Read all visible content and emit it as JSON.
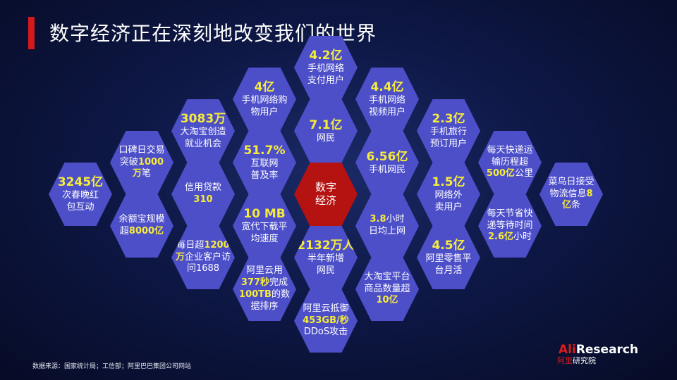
{
  "title": "数字经济正在深刻地改变我们的世界",
  "source": "数据来源：国家统计局；工信部；阿里巴巴集团公司网站",
  "logo": {
    "brand_red": "Ali",
    "brand_white": "Research",
    "sub_red": "阿里",
    "sub_white": "研究院"
  },
  "colors": {
    "hex": "#4d4fc9",
    "center": "#b51212",
    "highlight": "#f6ec3a",
    "title_bar": "#d31a1a"
  },
  "hexes": [
    {
      "id": "c0-a",
      "lines": [
        [
          {
            "t": "3245亿",
            "y": 1
          }
        ],
        [
          {
            "t": "次春晚红"
          }
        ],
        [
          {
            "t": "包互动"
          }
        ]
      ]
    },
    {
      "id": "c1-a",
      "lines": [
        [
          {
            "t": "口碑日交易"
          }
        ],
        [
          {
            "t": "突破"
          },
          {
            "t": "1000",
            "y": 1
          }
        ],
        [
          {
            "t": "万",
            "y": 1
          },
          {
            "t": "笔"
          }
        ]
      ]
    },
    {
      "id": "c1-b",
      "lines": [
        [
          {
            "t": "余额宝规模"
          }
        ],
        [
          {
            "t": "超"
          },
          {
            "t": "8000亿",
            "y": 1
          }
        ]
      ]
    },
    {
      "id": "c2-a",
      "lines": [
        [
          {
            "t": "3083万",
            "y": 1
          }
        ],
        [
          {
            "t": "大淘宝创造"
          }
        ],
        [
          {
            "t": "就业机会"
          }
        ]
      ]
    },
    {
      "id": "c2-b",
      "lines": [
        [
          {
            "t": "信用贷款"
          }
        ],
        [
          {
            "t": "310",
            "y": 1
          }
        ]
      ]
    },
    {
      "id": "c2-c",
      "lines": [
        [
          {
            "t": "每日超"
          },
          {
            "t": "1200",
            "y": 1
          }
        ],
        [
          {
            "t": "万",
            "y": 1
          },
          {
            "t": "企业客户访"
          }
        ],
        [
          {
            "t": "问1688"
          }
        ]
      ]
    },
    {
      "id": "c3-a",
      "lines": [
        [
          {
            "t": "4亿",
            "y": 1
          }
        ],
        [
          {
            "t": "手机网络购"
          }
        ],
        [
          {
            "t": "物用户"
          }
        ]
      ]
    },
    {
      "id": "c3-b",
      "lines": [
        [
          {
            "t": "51.7%",
            "y": 1
          }
        ],
        [
          {
            "t": "互联网"
          }
        ],
        [
          {
            "t": "普及率"
          }
        ]
      ]
    },
    {
      "id": "c3-c",
      "lines": [
        [
          {
            "t": "10 MB",
            "y": 1
          }
        ],
        [
          {
            "t": "宽代下载平"
          }
        ],
        [
          {
            "t": "均速度"
          }
        ]
      ]
    },
    {
      "id": "c3-d",
      "lines": [
        [
          {
            "t": "阿里云用"
          }
        ],
        [
          {
            "t": "377秒",
            "y": 1
          },
          {
            "t": "完成"
          }
        ],
        [
          {
            "t": "100TB",
            "y": 1
          },
          {
            "t": "的数"
          }
        ],
        [
          {
            "t": "据排序"
          }
        ]
      ]
    },
    {
      "id": "c4-a",
      "lines": [
        [
          {
            "t": "4.2亿",
            "y": 1
          }
        ],
        [
          {
            "t": "手机网络"
          }
        ],
        [
          {
            "t": "支付用户"
          }
        ]
      ]
    },
    {
      "id": "c4-b",
      "lines": [
        [
          {
            "t": "7.1亿",
            "y": 1
          }
        ],
        [
          {
            "t": "网民"
          }
        ]
      ]
    },
    {
      "id": "c4-center",
      "red": 1,
      "lines": [
        [
          {
            "t": "数字"
          }
        ],
        [
          {
            "t": "经济"
          }
        ]
      ]
    },
    {
      "id": "c4-d",
      "lines": [
        [
          {
            "t": "2132万人",
            "y": 1
          }
        ],
        [
          {
            "t": "半年新增"
          }
        ],
        [
          {
            "t": "网民"
          }
        ]
      ]
    },
    {
      "id": "c4-e",
      "lines": [
        [
          {
            "t": "阿里云抵御"
          }
        ],
        [
          {
            "t": "453GB/秒",
            "y": 1
          }
        ],
        [
          {
            "t": "DDoS攻击"
          }
        ]
      ]
    },
    {
      "id": "c5-a",
      "lines": [
        [
          {
            "t": "4.4亿",
            "y": 1
          }
        ],
        [
          {
            "t": "手机网络"
          }
        ],
        [
          {
            "t": "视频用户"
          }
        ]
      ]
    },
    {
      "id": "c5-b",
      "lines": [
        [
          {
            "t": "6.56亿",
            "y": 1
          }
        ],
        [
          {
            "t": "手机网民"
          }
        ]
      ]
    },
    {
      "id": "c5-c",
      "lines": [
        [
          {
            "t": "3.8",
            "y": 1
          },
          {
            "t": "小时"
          }
        ],
        [
          {
            "t": "日均上网"
          }
        ]
      ]
    },
    {
      "id": "c5-d",
      "lines": [
        [
          {
            "t": "大淘宝平台"
          }
        ],
        [
          {
            "t": "商品数量超"
          }
        ],
        [
          {
            "t": "10亿",
            "y": 1
          }
        ]
      ]
    },
    {
      "id": "c6-a",
      "lines": [
        [
          {
            "t": "2.3亿",
            "y": 1
          }
        ],
        [
          {
            "t": "手机旅行"
          }
        ],
        [
          {
            "t": "预订用户"
          }
        ]
      ]
    },
    {
      "id": "c6-b",
      "lines": [
        [
          {
            "t": "1.5亿",
            "y": 1
          }
        ],
        [
          {
            "t": "网络外"
          }
        ],
        [
          {
            "t": "卖用户"
          }
        ]
      ]
    },
    {
      "id": "c6-c",
      "lines": [
        [
          {
            "t": "4.5亿",
            "y": 1
          }
        ],
        [
          {
            "t": "阿里零售平"
          }
        ],
        [
          {
            "t": "台月活"
          }
        ]
      ]
    },
    {
      "id": "c7-a",
      "lines": [
        [
          {
            "t": "每天快递运"
          }
        ],
        [
          {
            "t": "输历程超"
          }
        ],
        [
          {
            "t": "500亿",
            "y": 1
          },
          {
            "t": "公里"
          }
        ]
      ]
    },
    {
      "id": "c7-b",
      "lines": [
        [
          {
            "t": "每天节省快"
          }
        ],
        [
          {
            "t": "递等待时间"
          }
        ],
        [
          {
            "t": "2.6亿",
            "y": 1
          },
          {
            "t": "小时"
          }
        ]
      ]
    },
    {
      "id": "c8-a",
      "lines": [
        [
          {
            "t": "菜鸟日接受"
          }
        ],
        [
          {
            "t": "物流信息"
          },
          {
            "t": "8",
            "y": 1
          }
        ],
        [
          {
            "t": "亿",
            "y": 1
          },
          {
            "t": "条"
          }
        ]
      ]
    }
  ]
}
